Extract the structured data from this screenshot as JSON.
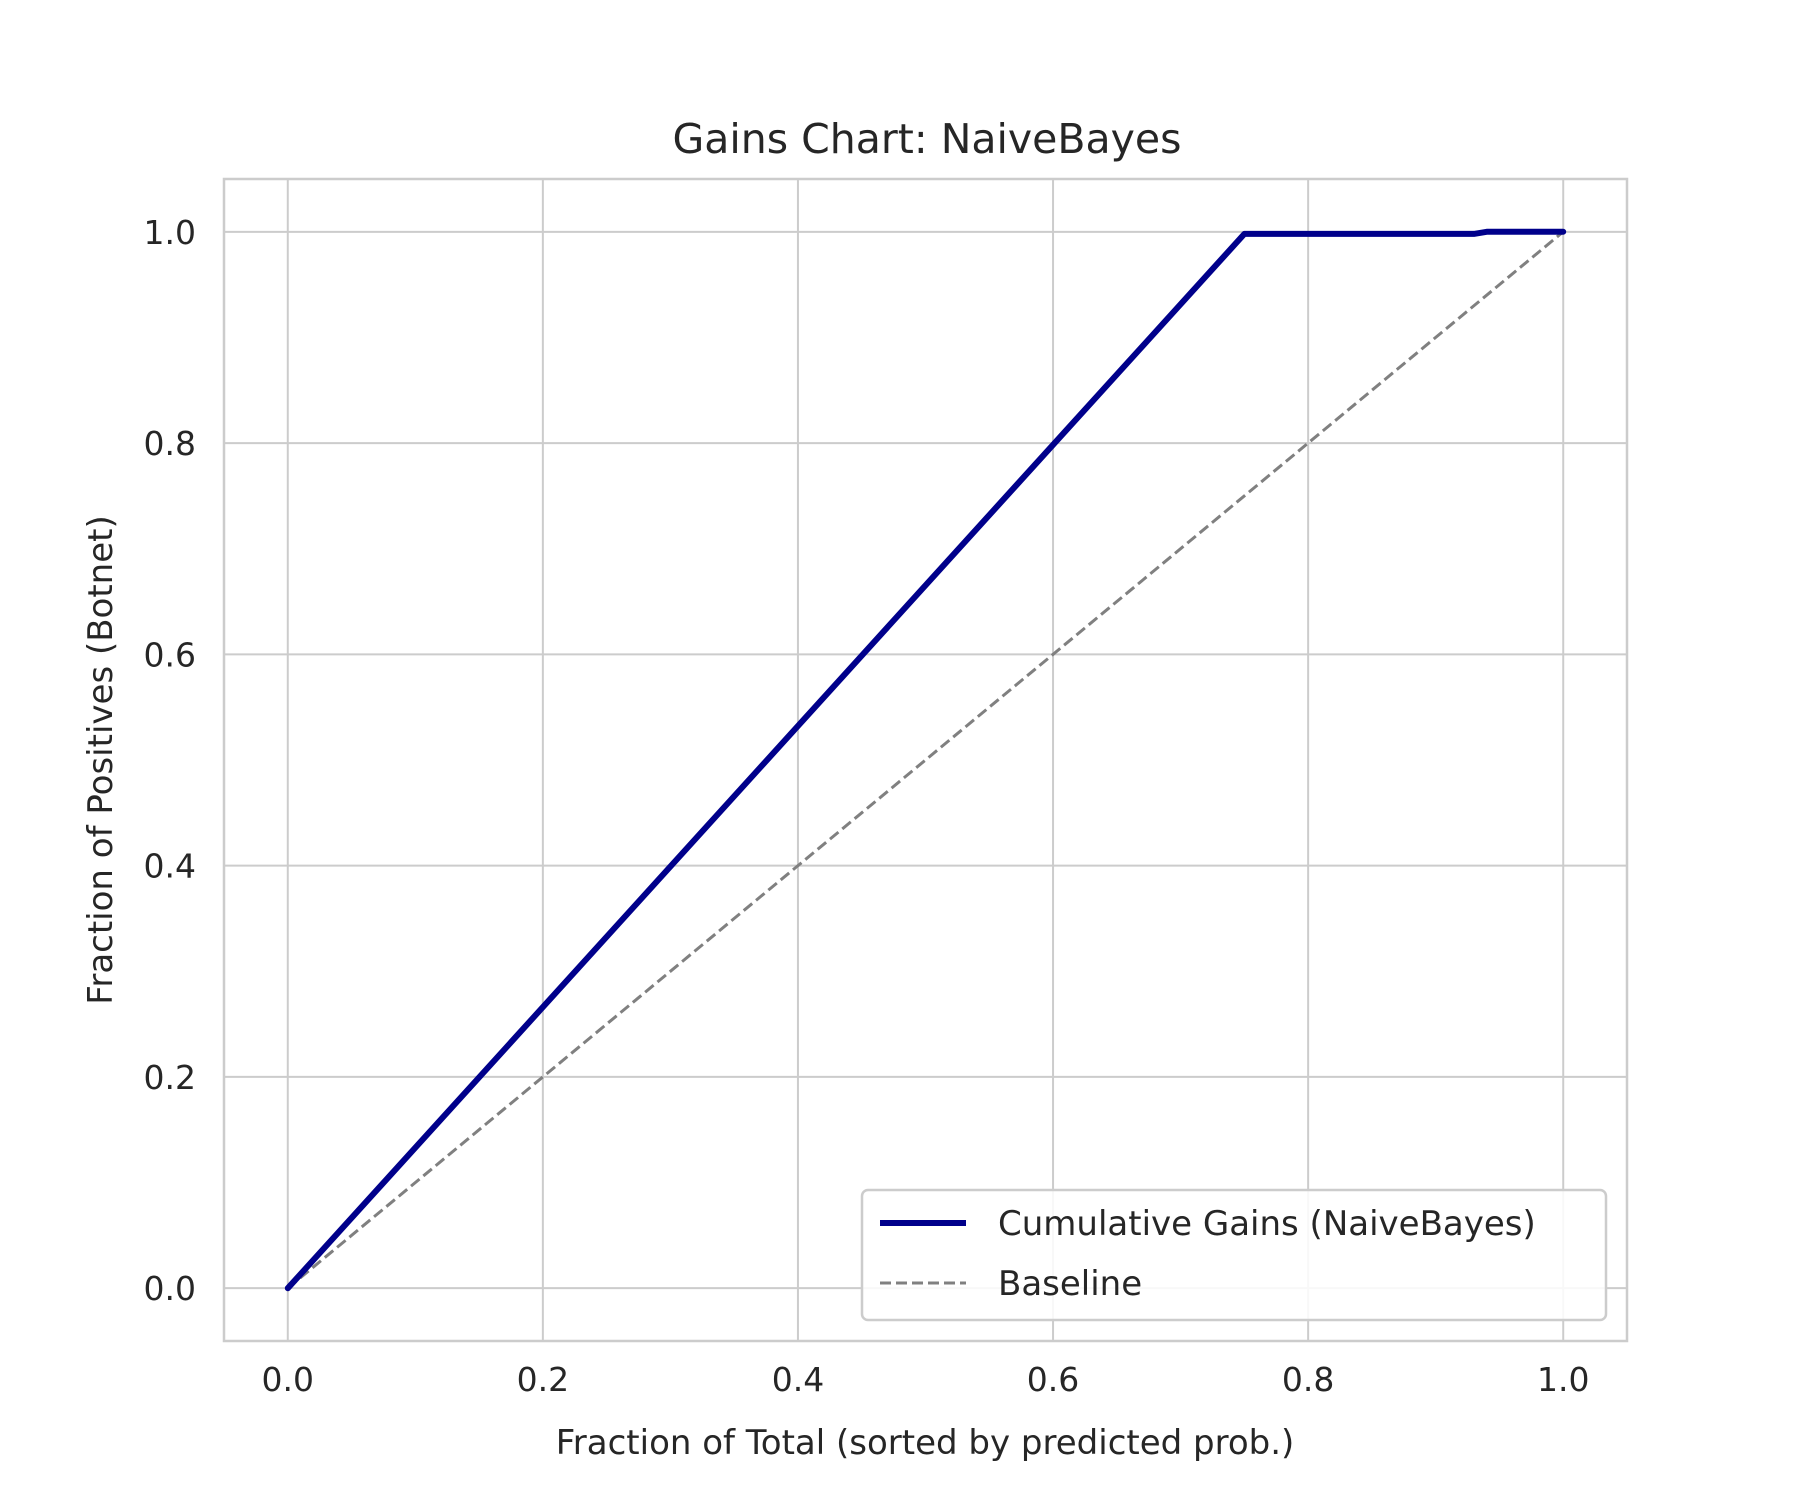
{
  "chart_data": {
    "type": "line",
    "title": "Gains Chart: NaiveBayes",
    "xlabel": "Fraction of Total (sorted by predicted prob.)",
    "ylabel": "Fraction of Positives (Botnet)",
    "xlim": [
      -0.05,
      1.05
    ],
    "ylim": [
      -0.05,
      1.05
    ],
    "xticks": [
      "0.0",
      "0.2",
      "0.4",
      "0.6",
      "0.8",
      "1.0"
    ],
    "yticks": [
      "0.0",
      "0.2",
      "0.4",
      "0.6",
      "0.8",
      "1.0"
    ],
    "grid": true,
    "legend_position": "lower-right",
    "series": [
      {
        "name": "Cumulative Gains (NaiveBayes)",
        "color": "#00008b",
        "style": "solid",
        "x": [
          0.0,
          0.75,
          0.93,
          0.94,
          1.0
        ],
        "y": [
          0.0,
          0.998,
          0.998,
          1.0,
          1.0
        ]
      },
      {
        "name": "Baseline",
        "color": "#808080",
        "style": "dashed",
        "x": [
          0.0,
          1.0
        ],
        "y": [
          0.0,
          1.0
        ]
      }
    ]
  }
}
